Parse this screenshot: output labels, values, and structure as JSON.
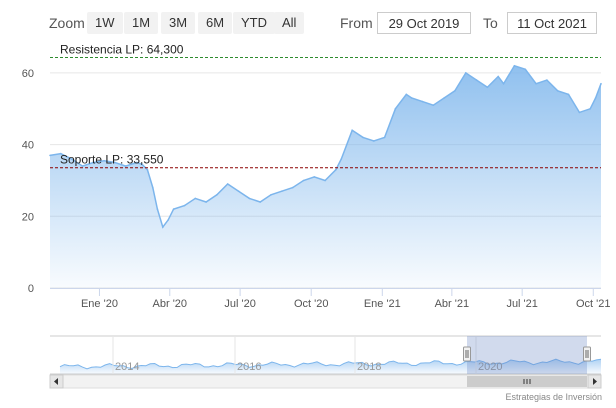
{
  "toolbar": {
    "zoom_label": "Zoom",
    "zoom_buttons": [
      "1W",
      "1M",
      "3M",
      "6M",
      "YTD",
      "All"
    ],
    "from_label": "From",
    "from_value": "29 Oct 2019",
    "to_label": "To",
    "to_value": "11 Oct 2021"
  },
  "credit": "Estrategias de Inversión",
  "colors": {
    "line": "#7cb5ec",
    "fill_top": "#7cb5ec",
    "support": "#8b0000",
    "resistance": "#2e8b2e",
    "navigator_mask": "rgba(102,133,194,0.3)"
  },
  "chart_data": {
    "type": "area",
    "ylim": [
      0,
      65
    ],
    "yticks": [
      0,
      20,
      40,
      60
    ],
    "xticks": [
      {
        "date": "2020-01-01",
        "label": "Ene '20"
      },
      {
        "date": "2020-04-01",
        "label": "Abr '20"
      },
      {
        "date": "2020-07-01",
        "label": "Jul '20"
      },
      {
        "date": "2020-10-01",
        "label": "Oct '20"
      },
      {
        "date": "2021-01-01",
        "label": "Ene '21"
      },
      {
        "date": "2021-04-01",
        "label": "Abr '21"
      },
      {
        "date": "2021-07-01",
        "label": "Jul '21"
      },
      {
        "date": "2021-10-01",
        "label": "Oct '21"
      }
    ],
    "x_range": [
      "2019-10-29",
      "2021-10-11"
    ],
    "lines": [
      {
        "name": "Resistencia LP",
        "label": "Resistencia LP: 64,300",
        "value": 64.3,
        "color": "#2e8b2e"
      },
      {
        "name": "Soporte LP",
        "label": "Soporte LP: 33,550",
        "value": 33.55,
        "color": "#8b0000"
      }
    ],
    "series": {
      "dates": [
        "2019-10-29",
        "2019-11-12",
        "2019-11-26",
        "2019-12-10",
        "2019-12-24",
        "2020-01-07",
        "2020-01-21",
        "2020-02-04",
        "2020-02-18",
        "2020-02-25",
        "2020-03-03",
        "2020-03-10",
        "2020-03-16",
        "2020-03-23",
        "2020-03-30",
        "2020-04-06",
        "2020-04-20",
        "2020-05-04",
        "2020-05-18",
        "2020-06-01",
        "2020-06-15",
        "2020-06-29",
        "2020-07-13",
        "2020-07-27",
        "2020-08-10",
        "2020-08-24",
        "2020-09-07",
        "2020-09-21",
        "2020-10-05",
        "2020-10-19",
        "2020-11-02",
        "2020-11-09",
        "2020-11-23",
        "2020-12-07",
        "2020-12-21",
        "2021-01-04",
        "2021-01-18",
        "2021-02-01",
        "2021-02-08",
        "2021-02-22",
        "2021-03-08",
        "2021-03-22",
        "2021-04-05",
        "2021-04-19",
        "2021-05-03",
        "2021-05-17",
        "2021-05-31",
        "2021-06-07",
        "2021-06-21",
        "2021-07-05",
        "2021-07-19",
        "2021-08-02",
        "2021-08-16",
        "2021-08-30",
        "2021-09-13",
        "2021-09-27",
        "2021-10-04",
        "2021-10-11"
      ],
      "values": [
        37,
        37.5,
        36,
        34,
        35,
        35.5,
        35,
        34,
        35,
        34.5,
        33,
        28,
        22,
        17,
        19,
        22,
        23,
        25,
        24,
        26,
        29,
        27,
        25,
        24,
        26,
        27,
        28,
        30,
        31,
        30,
        33,
        36,
        44,
        42,
        41,
        42,
        50,
        54,
        53,
        52,
        51,
        53,
        55,
        60,
        58,
        56,
        59,
        57,
        62,
        61,
        57,
        58,
        55,
        54,
        49,
        50,
        53,
        57
      ]
    },
    "navigator": {
      "year_labels": [
        "2014",
        "2016",
        "2018",
        "2020"
      ]
    }
  }
}
